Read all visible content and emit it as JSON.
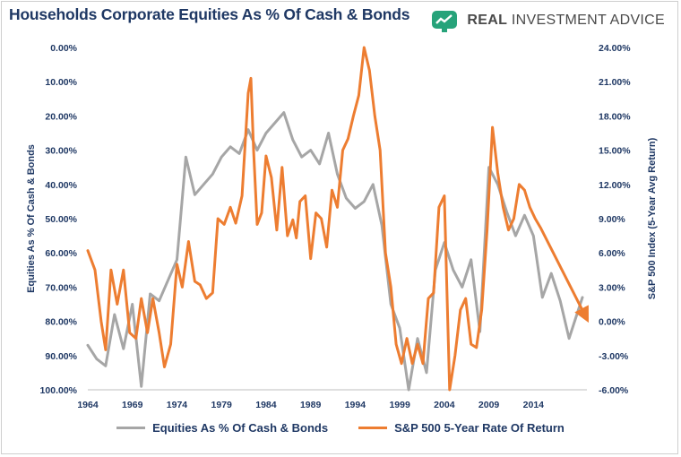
{
  "header": {
    "title": "Households Corporate Equities As % Of Cash & Bonds",
    "brand_prefix": "REAL",
    "brand_rest": " INVESTMENT ADVICE",
    "brand_icon": "chart-board-icon",
    "brand_color": "#27a37a"
  },
  "chart_data": {
    "type": "line",
    "xlabel": "",
    "x_ticks": [
      "1964",
      "1969",
      "1974",
      "1979",
      "1984",
      "1989",
      "1994",
      "1999",
      "2004",
      "2009",
      "2014"
    ],
    "xlim": [
      1964,
      2020
    ],
    "left_axis": {
      "label": "Equities As % Of Cash & Bonds",
      "ticks": [
        "0.00%",
        "10.00%",
        "20.00%",
        "30.00%",
        "40.00%",
        "50.00%",
        "60.00%",
        "70.00%",
        "80.00%",
        "90.00%",
        "100.00%"
      ],
      "ylim": [
        0,
        100
      ],
      "inverted": true
    },
    "right_axis": {
      "label": "S&P 500 Index (5-Year Avg Return)",
      "ticks": [
        "24.00%",
        "21.00%",
        "18.00%",
        "15.00%",
        "12.00%",
        "9.00%",
        "6.00%",
        "3.00%",
        "0.00%",
        "-3.00%",
        "-6.00%"
      ],
      "ylim": [
        -6,
        24
      ]
    },
    "series": [
      {
        "name": "Equities As % Of Cash & Bonds",
        "axis": "left",
        "color": "#a6a6a6",
        "x": [
          1964,
          1965,
          1966,
          1967,
          1968,
          1969,
          1970,
          1971,
          1972,
          1973,
          1974,
          1975,
          1976,
          1977,
          1978,
          1979,
          1980,
          1981,
          1982,
          1983,
          1984,
          1985,
          1986,
          1987,
          1988,
          1989,
          1990,
          1991,
          1992,
          1993,
          1994,
          1995,
          1996,
          1997,
          1998,
          1999,
          2000,
          2001,
          2002,
          2003,
          2004,
          2005,
          2006,
          2007,
          2008,
          2009,
          2010,
          2011,
          2012,
          2013,
          2014,
          2015,
          2016,
          2017,
          2018,
          2019.5
        ],
        "values": [
          87,
          91,
          93,
          78,
          88,
          75,
          99,
          72,
          74,
          68,
          62,
          32,
          43,
          40,
          37,
          32,
          29,
          31,
          24,
          30,
          25,
          22,
          19,
          27,
          32,
          30,
          34,
          25,
          37,
          44,
          47,
          45,
          40,
          52,
          75,
          82,
          100,
          85,
          95,
          65,
          57,
          65,
          70,
          62,
          83,
          35,
          40,
          48,
          55,
          49,
          55,
          73,
          66,
          74,
          85,
          73
        ]
      },
      {
        "name": "S&P 500 5-Year Rate Of Return",
        "axis": "right",
        "color": "#ed7d31",
        "x": [
          1964,
          1964.8,
          1965.5,
          1966,
          1966.6,
          1967.3,
          1968,
          1968.7,
          1969.4,
          1970,
          1970.7,
          1971.3,
          1972,
          1972.6,
          1973.3,
          1974,
          1974.6,
          1975.3,
          1976,
          1976.6,
          1977.3,
          1978,
          1978.6,
          1979.3,
          1980,
          1980.6,
          1981.3,
          1982,
          1982.3,
          1982.6,
          1983,
          1983.5,
          1984,
          1984.6,
          1985.2,
          1985.8,
          1986.4,
          1987,
          1987.4,
          1987.8,
          1988.4,
          1989,
          1989.6,
          1990.2,
          1990.8,
          1991.4,
          1992,
          1992.6,
          1993.2,
          1993.8,
          1994.4,
          1995,
          1995.6,
          1996.2,
          1996.8,
          1997.4,
          1998,
          1998.6,
          1999.2,
          1999.8,
          2000.4,
          2001,
          2001.6,
          2002.2,
          2002.8,
          2003.4,
          2004,
          2004.6,
          2005.2,
          2005.8,
          2006.4,
          2007,
          2007.6,
          2008.2,
          2008.8,
          2009.4,
          2010,
          2010.6,
          2011.2,
          2011.8,
          2012.4,
          2013,
          2013.6,
          2014.2,
          2014.8,
          2019.8
        ],
        "values": [
          6.2,
          4.5,
          0,
          -2.5,
          4.5,
          1.5,
          4.5,
          -1,
          -1.5,
          2,
          -1,
          2,
          -1,
          -4,
          -2,
          5,
          3,
          7,
          3.5,
          3.2,
          2,
          2.5,
          9,
          8.5,
          10,
          8.6,
          11,
          20,
          21.3,
          15,
          8.5,
          9.5,
          14.5,
          12.6,
          8,
          13.5,
          7.5,
          8.9,
          7.3,
          10.5,
          11,
          5.5,
          9.5,
          9,
          6.5,
          11.5,
          10,
          15,
          16,
          18,
          19.8,
          24,
          22,
          18,
          15,
          6,
          3,
          -2,
          -3.7,
          -1.5,
          -3.7,
          -2,
          -3.7,
          2,
          2.5,
          10,
          11,
          -6,
          -3,
          1,
          2,
          -2,
          -2.3,
          1,
          8,
          17,
          13,
          10,
          8,
          9,
          12,
          11.5,
          10,
          9,
          8.2,
          0.5
        ]
      }
    ],
    "annotations": [
      {
        "type": "dashed-arrow",
        "axis": "right",
        "from": [
          2014.8,
          8.2
        ],
        "to": [
          2019.8,
          0.5
        ],
        "color": "#ed7d31"
      }
    ],
    "legend_position": "bottom",
    "grid": false
  }
}
